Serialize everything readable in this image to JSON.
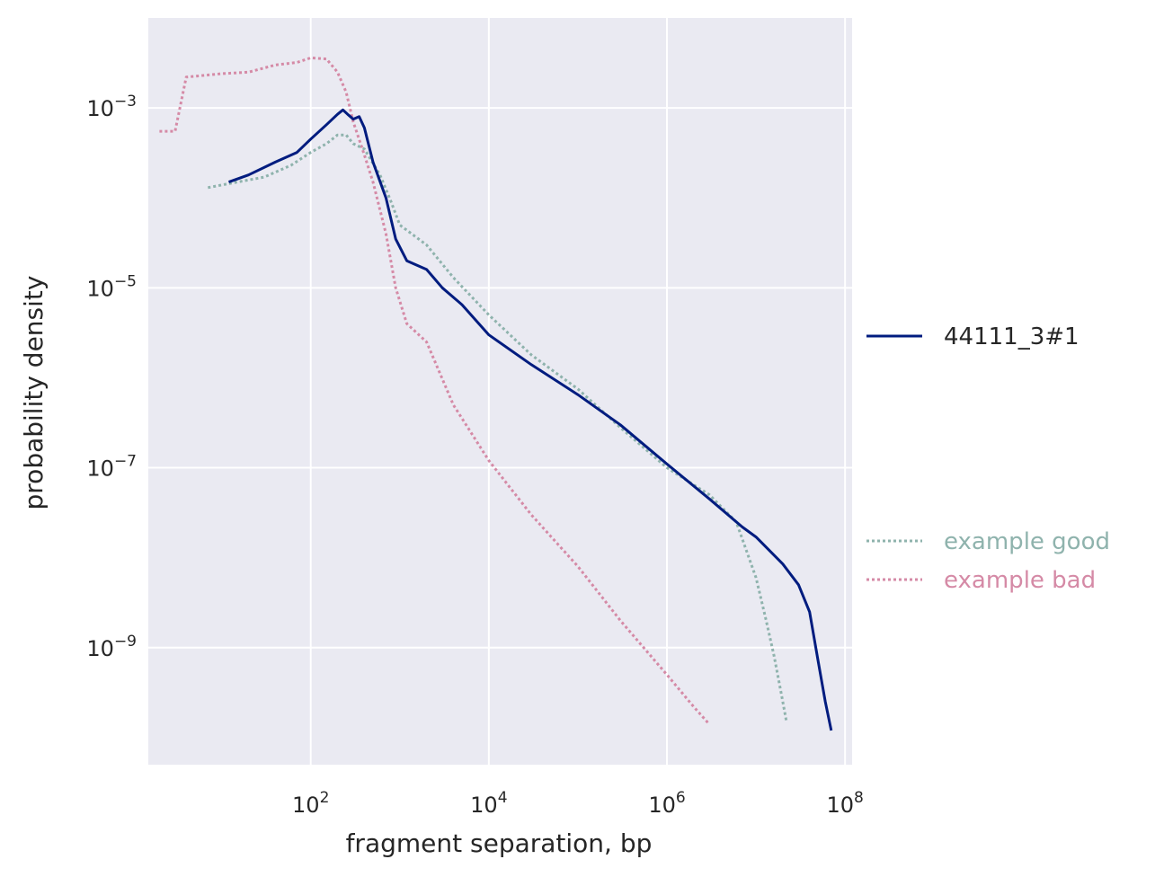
{
  "chart_data": {
    "type": "line",
    "title": "",
    "xlabel": "fragment separation, bp",
    "ylabel": "probability density",
    "xscale": "log",
    "yscale": "log",
    "xlim": [
      1.5,
      120000000
    ],
    "ylim": [
      5e-11,
      0.01
    ],
    "grid": true,
    "background": "#eaeaf2",
    "x_ticks": [
      {
        "base": "10",
        "exp": "2",
        "value": 100
      },
      {
        "base": "10",
        "exp": "4",
        "value": 10000
      },
      {
        "base": "10",
        "exp": "6",
        "value": 1000000
      },
      {
        "base": "10",
        "exp": "8",
        "value": 100000000
      }
    ],
    "y_ticks": [
      {
        "base": "10",
        "exp": "−3",
        "value": 0.001
      },
      {
        "base": "10",
        "exp": "−5",
        "value": 1e-05
      },
      {
        "base": "10",
        "exp": "−7",
        "value": 1e-07
      },
      {
        "base": "10",
        "exp": "−9",
        "value": 1e-09
      }
    ],
    "legend_placement": "right",
    "series": [
      {
        "name": "44111_3#1",
        "style": "solid",
        "color": "#001c7f",
        "points": [
          [
            12,
            0.00015
          ],
          [
            20,
            0.00018
          ],
          [
            40,
            0.00025
          ],
          [
            70,
            0.00032
          ],
          [
            100,
            0.00045
          ],
          [
            150,
            0.00065
          ],
          [
            200,
            0.00085
          ],
          [
            230,
            0.00095
          ],
          [
            260,
            0.00085
          ],
          [
            300,
            0.00075
          ],
          [
            350,
            0.0008
          ],
          [
            400,
            0.0006
          ],
          [
            500,
            0.00025
          ],
          [
            700,
            0.0001
          ],
          [
            900,
            3.5e-05
          ],
          [
            1200,
            2e-05
          ],
          [
            2000,
            1.6e-05
          ],
          [
            3000,
            1e-05
          ],
          [
            5000,
            6.5e-06
          ],
          [
            10000.0,
            3e-06
          ],
          [
            30000.0,
            1.4e-06
          ],
          [
            100000.0,
            6.5e-07
          ],
          [
            300000.0,
            3e-07
          ],
          [
            1000000.0,
            1.1e-07
          ],
          [
            3000000.0,
            4.5e-08
          ],
          [
            7000000.0,
            2.2e-08
          ],
          [
            10000000.0,
            1.7e-08
          ],
          [
            20000000.0,
            8.5e-09
          ],
          [
            30000000.0,
            5e-09
          ],
          [
            40000000.0,
            2.5e-09
          ],
          [
            50000000.0,
            7e-10
          ],
          [
            60000000.0,
            2.5e-10
          ],
          [
            70000000.0,
            1.2e-10
          ]
        ]
      },
      {
        "name": "example good",
        "style": "dotted",
        "color": "#8fb3ad",
        "points": [
          [
            7,
            0.00013
          ],
          [
            15,
            0.00015
          ],
          [
            30,
            0.00017
          ],
          [
            60,
            0.00023
          ],
          [
            100,
            0.00032
          ],
          [
            150,
            0.0004
          ],
          [
            200,
            0.0005
          ],
          [
            250,
            0.0005
          ],
          [
            300,
            0.0004
          ],
          [
            400,
            0.00035
          ],
          [
            600,
            0.00018
          ],
          [
            800,
            9e-05
          ],
          [
            1000,
            5e-05
          ],
          [
            2000,
            3e-05
          ],
          [
            4000,
            1.3e-05
          ],
          [
            10000.0,
            5e-06
          ],
          [
            30000.0,
            1.8e-06
          ],
          [
            100000.0,
            7.5e-07
          ],
          [
            300000.0,
            2.8e-07
          ],
          [
            1000000.0,
            1e-07
          ],
          [
            3000000.0,
            5e-08
          ],
          [
            6000000.0,
            2.5e-08
          ],
          [
            10000000.0,
            6e-09
          ],
          [
            13000000.0,
            2e-09
          ],
          [
            16000000.0,
            8e-10
          ],
          [
            20000000.0,
            2.5e-10
          ],
          [
            22000000.0,
            1.5e-10
          ]
        ]
      },
      {
        "name": "example bad",
        "style": "dotted",
        "color": "#d58aa6",
        "points": [
          [
            2,
            0.00055
          ],
          [
            3,
            0.00055
          ],
          [
            4,
            0.0022
          ],
          [
            10,
            0.0024
          ],
          [
            20,
            0.0025
          ],
          [
            40,
            0.003
          ],
          [
            70,
            0.0032
          ],
          [
            100,
            0.0036
          ],
          [
            150,
            0.0035
          ],
          [
            200,
            0.0025
          ],
          [
            250,
            0.0015
          ],
          [
            300,
            0.0007
          ],
          [
            400,
            0.0003
          ],
          [
            500,
            0.00015
          ],
          [
            700,
            4e-05
          ],
          [
            900,
            1e-05
          ],
          [
            1200,
            4e-06
          ],
          [
            2000,
            2.5e-06
          ],
          [
            4000,
            5e-07
          ],
          [
            10000.0,
            1.2e-07
          ],
          [
            30000.0,
            3e-08
          ],
          [
            100000.0,
            8e-09
          ],
          [
            300000.0,
            2e-09
          ],
          [
            1000000.0,
            5e-10
          ],
          [
            2000000.0,
            2.2e-10
          ],
          [
            3000000.0,
            1.4e-10
          ]
        ]
      }
    ]
  }
}
